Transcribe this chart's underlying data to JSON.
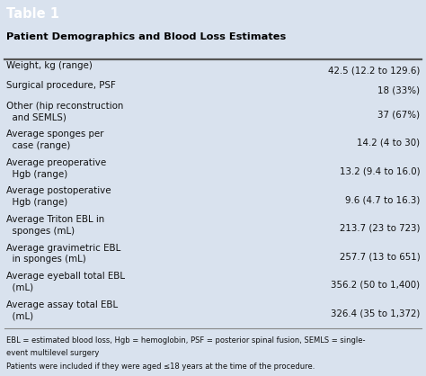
{
  "title": "Table 1",
  "subtitle": "Patient Demographics and Blood Loss Estimates",
  "header_bg": "#2E6DA4",
  "table_bg": "#D9E2EE",
  "footer_bg": "#C5D3E3",
  "title_color": "#FFFFFF",
  "subtitle_color": "#000000",
  "rows": [
    [
      "Weight, kg (range)",
      "42.5 (12.2 to 129.6)"
    ],
    [
      "Surgical procedure, PSF",
      "18 (33%)"
    ],
    [
      "Other (hip reconstruction\n  and SEMLS)",
      "37 (67%)"
    ],
    [
      "Average sponges per\n  case (range)",
      "14.2 (4 to 30)"
    ],
    [
      "Average preoperative\n  Hgb (range)",
      "13.2 (9.4 to 16.0)"
    ],
    [
      "Average postoperative\n  Hgb (range)",
      "9.6 (4.7 to 16.3)"
    ],
    [
      "Average Triton EBL in\n  sponges (mL)",
      "213.7 (23 to 723)"
    ],
    [
      "Average gravimetric EBL\n  in sponges (mL)",
      "257.7 (13 to 651)"
    ],
    [
      "Average eyeball total EBL\n  (mL)",
      "356.2 (50 to 1,400)"
    ],
    [
      "Average assay total EBL\n  (mL)",
      "326.4 (35 to 1,372)"
    ]
  ],
  "footnote_lines": [
    "EBL = estimated blood loss, Hgb = hemoglobin, PSF = posterior spinal fusion, SEMLS = single-",
    "event multilevel surgery",
    "Patients were included if they were aged ≤18 years at the time of the procedure."
  ],
  "fig_width": 4.74,
  "fig_height": 4.18,
  "dpi": 100
}
